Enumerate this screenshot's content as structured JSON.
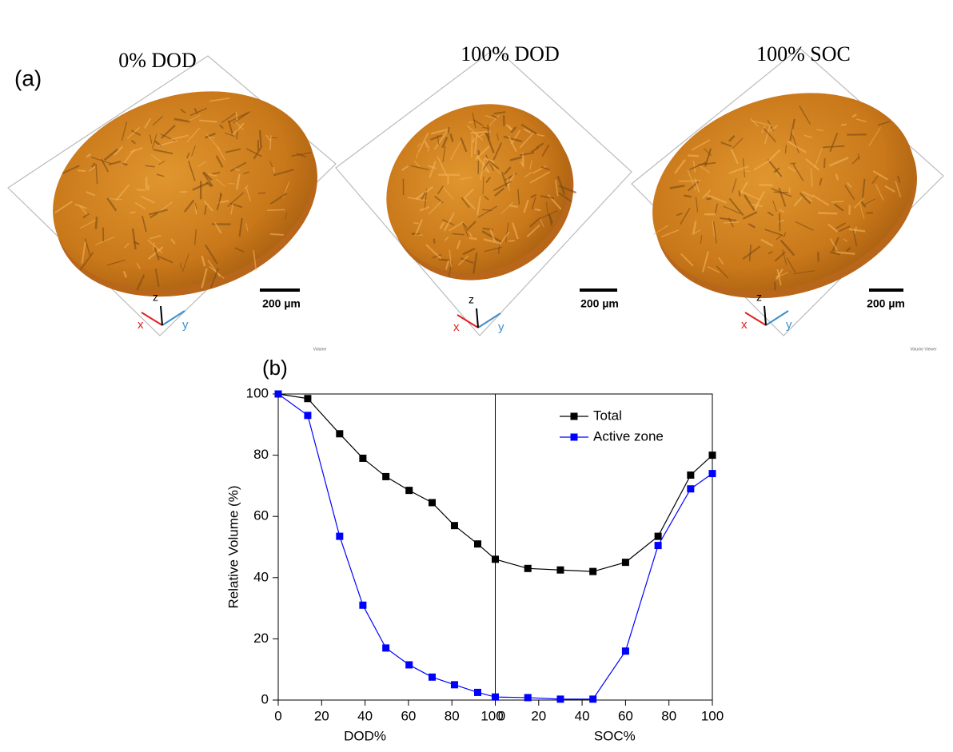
{
  "panel_a": {
    "label": "(a)",
    "images": [
      {
        "title": "0% DOD",
        "scale": "200 µm",
        "axis_x": "x",
        "axis_y": "y",
        "axis_z": "z",
        "caption": "Volume"
      },
      {
        "title": "100% DOD",
        "scale": "200 µm",
        "axis_x": "x",
        "axis_y": "y",
        "axis_z": "z"
      },
      {
        "title": "100% SOC",
        "scale": "200 µm",
        "axis_x": "x",
        "axis_y": "y",
        "axis_z": "z",
        "caption": "Volume Viewer"
      }
    ]
  },
  "chart_data": {
    "type": "line",
    "panel_label": "(b)",
    "y_label": "Relative Volume (%)",
    "x_label_left": "DOD%",
    "x_label_right": "SOC%",
    "x": [
      0,
      13.6,
      28.3,
      39,
      49.6,
      60.3,
      70.9,
      81.2,
      91.9,
      100,
      115,
      130,
      145,
      160,
      175,
      190,
      200
    ],
    "series": [
      {
        "name": "Total",
        "color": "#000000",
        "values": [
          100,
          98.5,
          87,
          79,
          73,
          68.5,
          64.5,
          57,
          51,
          46,
          43,
          42.5,
          42,
          45,
          53.5,
          73.5,
          80
        ]
      },
      {
        "name": "Active zone",
        "color": "#0000ff",
        "values": [
          100,
          93,
          53.5,
          31,
          17,
          11.5,
          7.5,
          5,
          2.5,
          1,
          0.8,
          0.3,
          0.3,
          16,
          50.5,
          69,
          74
        ]
      }
    ],
    "xlim": [
      0,
      200
    ],
    "ylim": [
      0,
      100
    ],
    "xticks": [
      0,
      20,
      40,
      60,
      80,
      100,
      {
        "value": 100,
        "label": "0"
      },
      {
        "value": 120,
        "label": "20"
      },
      {
        "value": 140,
        "label": "40"
      },
      {
        "value": 160,
        "label": "60"
      },
      {
        "value": 180,
        "label": "80"
      },
      {
        "value": 200,
        "label": "100"
      }
    ],
    "yticks": [
      0,
      20,
      40,
      60,
      80,
      100
    ],
    "legend": "top-right",
    "grid": false
  }
}
